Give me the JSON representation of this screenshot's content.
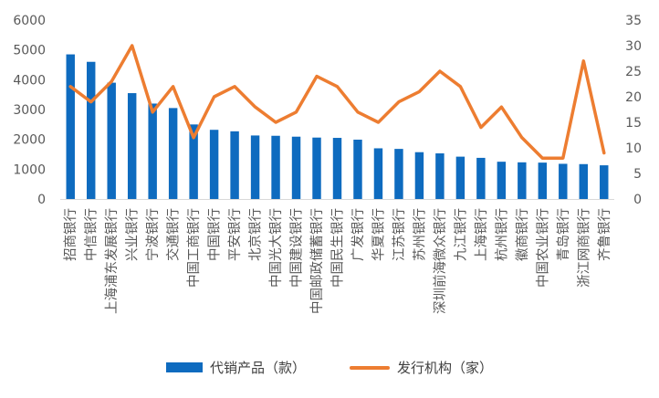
{
  "chart_data": {
    "type": "bar",
    "categories": [
      "招商银行",
      "中信银行",
      "上海浦东发展银行",
      "兴业银行",
      "宁波银行",
      "交通银行",
      "中国工商银行",
      "中国银行",
      "平安银行",
      "北京银行",
      "中国光大银行",
      "中国建设银行",
      "中国邮政储蓄银行",
      "中国民生银行",
      "广发银行",
      "华夏银行",
      "江苏银行",
      "苏州银行",
      "深圳前海微众银行",
      "九江银行",
      "上海银行",
      "杭州银行",
      "徽商银行",
      "中国农业银行",
      "青岛银行",
      "浙江网商银行",
      "齐鲁银行"
    ],
    "series": [
      {
        "name": "代销产品（款）",
        "type": "bar",
        "axis": "left",
        "color": "#0E6BBF",
        "values": [
          4850,
          4600,
          3900,
          3550,
          3200,
          3050,
          2500,
          2320,
          2270,
          2130,
          2120,
          2090,
          2060,
          2050,
          1990,
          1700,
          1680,
          1570,
          1530,
          1420,
          1380,
          1250,
          1230,
          1220,
          1180,
          1170,
          1130
        ]
      },
      {
        "name": "发行机构（家）",
        "type": "line",
        "axis": "right",
        "color": "#ED7D31",
        "values": [
          22,
          19,
          23,
          30,
          17,
          22,
          12,
          20,
          22,
          18,
          15,
          17,
          24,
          22,
          17,
          15,
          19,
          21,
          25,
          22,
          14,
          18,
          12,
          8,
          8,
          27,
          9
        ]
      }
    ],
    "y_left": {
      "min": 0,
      "max": 6000,
      "ticks": [
        0,
        1000,
        2000,
        3000,
        4000,
        5000,
        6000
      ]
    },
    "y_right": {
      "min": 0,
      "max": 35,
      "ticks": [
        0,
        5,
        10,
        15,
        20,
        25,
        30,
        35
      ]
    },
    "legend": {
      "position": "bottom"
    },
    "grid": false
  }
}
